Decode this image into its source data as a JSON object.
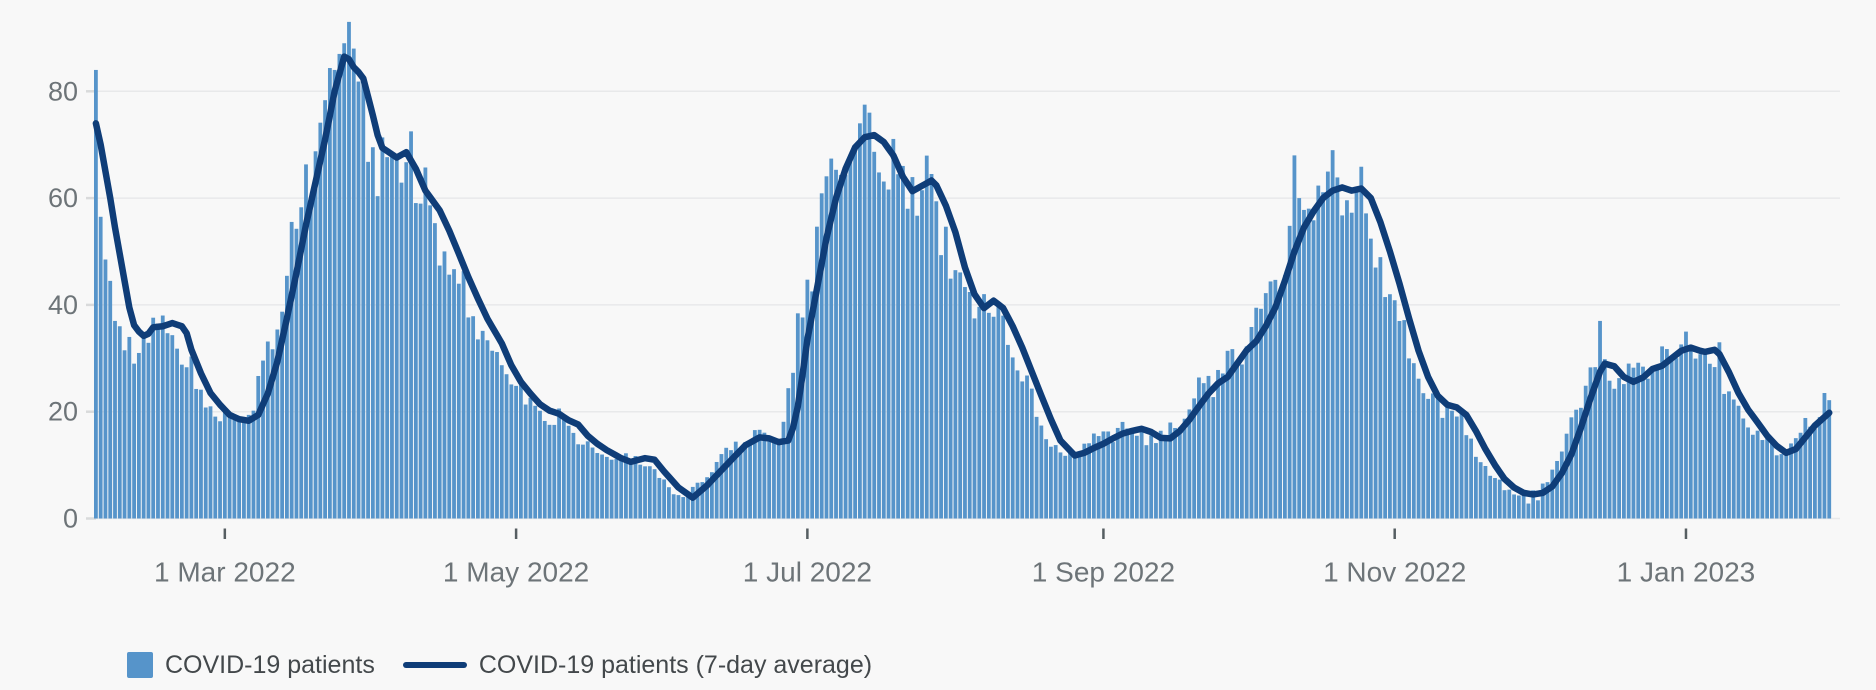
{
  "colors": {
    "bar": "#5694ca",
    "line": "#0f3d78",
    "background": "#f8f8f8",
    "grid": "#e8e9ea",
    "axis_tick_dash": "#d9dadb",
    "x_tick": "#565e62",
    "axis_text": "#6d7478",
    "legend_text": "#43484b"
  },
  "legend": {
    "items": [
      {
        "label": "COVID-19 patients",
        "swatch": "square",
        "color": "#5694ca"
      },
      {
        "label": "COVID-19 patients (7-day average)",
        "swatch": "line",
        "color": "#0f3d78"
      }
    ]
  },
  "chart_data": {
    "type": "bar",
    "title": "",
    "estimated": true,
    "date_range": {
      "start": "2022-02-02",
      "end": "2023-01-31"
    },
    "y_axis": {
      "ticks": [
        0,
        20,
        40,
        60,
        80
      ],
      "ylim": [
        0,
        93.5
      ],
      "grid": true
    },
    "x_axis": {
      "ticks": [
        {
          "label": "1 Mar 2022",
          "date": "2022-03-01"
        },
        {
          "label": "1 May 2022",
          "date": "2022-05-01"
        },
        {
          "label": "1 Jul 2022",
          "date": "2022-07-01"
        },
        {
          "label": "1 Sep 2022",
          "date": "2022-09-01"
        },
        {
          "label": "1 Nov 2022",
          "date": "2022-11-01"
        },
        {
          "label": "1 Jan 2023",
          "date": "2023-01-01"
        }
      ]
    },
    "legend_position": "bottom-left",
    "series": [
      {
        "name": "COVID-19 patients",
        "type": "bar",
        "color": "#5694ca",
        "derivation": "daily value = 7-day-average value led by lead_days, times deterministic noise factor; specific bars overridden",
        "noise": {
          "amp": 0.09,
          "weekly_amp": 0.05,
          "weekly_phase": 2.0,
          "lead_days": 2.2,
          "cap": 93.2
        },
        "overrides": {
          "2022-02-02": 84,
          "2022-02-03": 56.5,
          "2022-02-04": 48.5,
          "2022-02-05": 44.5,
          "2022-02-06": 37,
          "2022-02-07": 36,
          "2022-02-08": 31.5,
          "2022-02-09": 34,
          "2022-02-10": 29,
          "2022-02-11": 31,
          "2022-03-24": 84,
          "2022-03-25": 87,
          "2022-03-26": 89,
          "2022-03-27": 93,
          "2022-03-28": 88,
          "2022-04-09": 72.5,
          "2022-07-12": 74,
          "2022-07-13": 77.5,
          "2022-07-14": 76,
          "2022-10-11": 68,
          "2022-10-12": 60,
          "2022-11-29": 2.8,
          "2022-12-01": 3.4,
          "2022-12-14": 37,
          "2023-01-01": 35,
          "2023-01-08": 33,
          "2023-01-30": 23.5
        }
      },
      {
        "name": "COVID-19 patients (7-day average)",
        "type": "line",
        "color": "#0f3d78",
        "anchors": [
          [
            "2022-02-02",
            74
          ],
          [
            "2022-02-03",
            70
          ],
          [
            "2022-02-04",
            65
          ],
          [
            "2022-02-05",
            60
          ],
          [
            "2022-02-06",
            54.5
          ],
          [
            "2022-02-07",
            49.5
          ],
          [
            "2022-02-08",
            44.5
          ],
          [
            "2022-02-09",
            39.5
          ],
          [
            "2022-02-10",
            36.2
          ],
          [
            "2022-02-11",
            35
          ],
          [
            "2022-02-12",
            34.2
          ],
          [
            "2022-02-13",
            34.6
          ],
          [
            "2022-02-14",
            35.8
          ],
          [
            "2022-02-16",
            36
          ],
          [
            "2022-02-18",
            36.6
          ],
          [
            "2022-02-20",
            36
          ],
          [
            "2022-02-21",
            34.7
          ],
          [
            "2022-02-22",
            31.6
          ],
          [
            "2022-02-24",
            27.2
          ],
          [
            "2022-02-26",
            23.5
          ],
          [
            "2022-02-28",
            21.3
          ],
          [
            "2022-03-02",
            19.4
          ],
          [
            "2022-03-04",
            18.6
          ],
          [
            "2022-03-06",
            18.3
          ],
          [
            "2022-03-08",
            19.4
          ],
          [
            "2022-03-10",
            23.4
          ],
          [
            "2022-03-12",
            29.4
          ],
          [
            "2022-03-14",
            37.5
          ],
          [
            "2022-03-16",
            46
          ],
          [
            "2022-03-18",
            55
          ],
          [
            "2022-03-20",
            63
          ],
          [
            "2022-03-22",
            71
          ],
          [
            "2022-03-24",
            80
          ],
          [
            "2022-03-26",
            86.5
          ],
          [
            "2022-03-27",
            86
          ],
          [
            "2022-03-28",
            84.5
          ],
          [
            "2022-03-29",
            83.6
          ],
          [
            "2022-03-30",
            82.4
          ],
          [
            "2022-03-31",
            79
          ],
          [
            "2022-04-01",
            75.5
          ],
          [
            "2022-04-02",
            71.8
          ],
          [
            "2022-04-03",
            69.4
          ],
          [
            "2022-04-05",
            68.2
          ],
          [
            "2022-04-06",
            67.6
          ],
          [
            "2022-04-08",
            68.6
          ],
          [
            "2022-04-10",
            65.5
          ],
          [
            "2022-04-12",
            61.4
          ],
          [
            "2022-04-15",
            57.7
          ],
          [
            "2022-04-17",
            53.9
          ],
          [
            "2022-04-19",
            49.6
          ],
          [
            "2022-04-21",
            45.2
          ],
          [
            "2022-04-23",
            41.2
          ],
          [
            "2022-04-25",
            37.4
          ],
          [
            "2022-04-28",
            32.8
          ],
          [
            "2022-04-30",
            28.7
          ],
          [
            "2022-05-02",
            25.6
          ],
          [
            "2022-05-04",
            23.4
          ],
          [
            "2022-05-06",
            21.4
          ],
          [
            "2022-05-08",
            20.2
          ],
          [
            "2022-05-10",
            19.6
          ],
          [
            "2022-05-12",
            18.4
          ],
          [
            "2022-05-14",
            17.6
          ],
          [
            "2022-05-16",
            15.5
          ],
          [
            "2022-05-18",
            14
          ],
          [
            "2022-05-20",
            12.8
          ],
          [
            "2022-05-23",
            11.3
          ],
          [
            "2022-05-25",
            10.6
          ],
          [
            "2022-05-28",
            11.3
          ],
          [
            "2022-05-30",
            11
          ],
          [
            "2022-06-01",
            8.8
          ],
          [
            "2022-06-04",
            5.8
          ],
          [
            "2022-06-07",
            3.9
          ],
          [
            "2022-06-10",
            6.2
          ],
          [
            "2022-06-12",
            8.1
          ],
          [
            "2022-06-15",
            10.9
          ],
          [
            "2022-06-18",
            13.7
          ],
          [
            "2022-06-21",
            15.2
          ],
          [
            "2022-06-23",
            15
          ],
          [
            "2022-06-25",
            14.3
          ],
          [
            "2022-06-27",
            14.6
          ],
          [
            "2022-06-28",
            17
          ],
          [
            "2022-06-29",
            21
          ],
          [
            "2022-06-30",
            27
          ],
          [
            "2022-07-01",
            33.5
          ],
          [
            "2022-07-03",
            43
          ],
          [
            "2022-07-05",
            52.5
          ],
          [
            "2022-07-07",
            60
          ],
          [
            "2022-07-09",
            65.5
          ],
          [
            "2022-07-11",
            69.5
          ],
          [
            "2022-07-13",
            71.4
          ],
          [
            "2022-07-15",
            71.8
          ],
          [
            "2022-07-17",
            70.5
          ],
          [
            "2022-07-19",
            68
          ],
          [
            "2022-07-21",
            64
          ],
          [
            "2022-07-23",
            61.3
          ],
          [
            "2022-07-25",
            62.3
          ],
          [
            "2022-07-27",
            63.3
          ],
          [
            "2022-07-28",
            62.4
          ],
          [
            "2022-07-30",
            58.6
          ],
          [
            "2022-08-01",
            53.6
          ],
          [
            "2022-08-03",
            47
          ],
          [
            "2022-08-05",
            42
          ],
          [
            "2022-08-07",
            39.4
          ],
          [
            "2022-08-09",
            40.8
          ],
          [
            "2022-08-11",
            39.4
          ],
          [
            "2022-08-13",
            36
          ],
          [
            "2022-08-15",
            32
          ],
          [
            "2022-08-17",
            27.5
          ],
          [
            "2022-08-19",
            23
          ],
          [
            "2022-08-21",
            18.6
          ],
          [
            "2022-08-23",
            14.6
          ],
          [
            "2022-08-26",
            11.8
          ],
          [
            "2022-08-28",
            12.3
          ],
          [
            "2022-08-30",
            13.2
          ],
          [
            "2022-09-01",
            14
          ],
          [
            "2022-09-03",
            15
          ],
          [
            "2022-09-05",
            15.9
          ],
          [
            "2022-09-07",
            16.4
          ],
          [
            "2022-09-09",
            16.8
          ],
          [
            "2022-09-11",
            16.2
          ],
          [
            "2022-09-13",
            15.1
          ],
          [
            "2022-09-15",
            15
          ],
          [
            "2022-09-17",
            16.4
          ],
          [
            "2022-09-19",
            18.5
          ],
          [
            "2022-09-21",
            21
          ],
          [
            "2022-09-23",
            23.4
          ],
          [
            "2022-09-25",
            25.3
          ],
          [
            "2022-09-27",
            26.5
          ],
          [
            "2022-09-29",
            29
          ],
          [
            "2022-10-01",
            31.5
          ],
          [
            "2022-10-03",
            33.2
          ],
          [
            "2022-10-05",
            36
          ],
          [
            "2022-10-07",
            39.5
          ],
          [
            "2022-10-09",
            44.5
          ],
          [
            "2022-10-11",
            50
          ],
          [
            "2022-10-13",
            54.5
          ],
          [
            "2022-10-15",
            57.5
          ],
          [
            "2022-10-17",
            60
          ],
          [
            "2022-10-19",
            61.4
          ],
          [
            "2022-10-21",
            62
          ],
          [
            "2022-10-23",
            61.4
          ],
          [
            "2022-10-25",
            61.8
          ],
          [
            "2022-10-27",
            60
          ],
          [
            "2022-10-29",
            55.5
          ],
          [
            "2022-10-31",
            50
          ],
          [
            "2022-11-02",
            44
          ],
          [
            "2022-11-04",
            37.5
          ],
          [
            "2022-11-06",
            31.4
          ],
          [
            "2022-11-08",
            26.5
          ],
          [
            "2022-11-10",
            23
          ],
          [
            "2022-11-12",
            21.3
          ],
          [
            "2022-11-14",
            20.8
          ],
          [
            "2022-11-16",
            19.4
          ],
          [
            "2022-11-18",
            16.4
          ],
          [
            "2022-11-20",
            13
          ],
          [
            "2022-11-22",
            10
          ],
          [
            "2022-11-24",
            7.4
          ],
          [
            "2022-11-26",
            5.8
          ],
          [
            "2022-11-28",
            4.8
          ],
          [
            "2022-11-30",
            4.5
          ],
          [
            "2022-12-02",
            4.8
          ],
          [
            "2022-12-04",
            6
          ],
          [
            "2022-12-06",
            8.5
          ],
          [
            "2022-12-08",
            12
          ],
          [
            "2022-12-10",
            17
          ],
          [
            "2022-12-12",
            22.5
          ],
          [
            "2022-12-14",
            27.5
          ],
          [
            "2022-12-15",
            29
          ],
          [
            "2022-12-17",
            28.5
          ],
          [
            "2022-12-19",
            26.5
          ],
          [
            "2022-12-21",
            25.6
          ],
          [
            "2022-12-23",
            26.4
          ],
          [
            "2022-12-25",
            28
          ],
          [
            "2022-12-27",
            28.6
          ],
          [
            "2022-12-29",
            30
          ],
          [
            "2022-12-31",
            31.4
          ],
          [
            "2023-01-02",
            32
          ],
          [
            "2023-01-04",
            31.4
          ],
          [
            "2023-01-05",
            31.2
          ],
          [
            "2023-01-07",
            31.6
          ],
          [
            "2023-01-08",
            30.8
          ],
          [
            "2023-01-10",
            27.4
          ],
          [
            "2023-01-12",
            23.5
          ],
          [
            "2023-01-14",
            20.4
          ],
          [
            "2023-01-16",
            18
          ],
          [
            "2023-01-18",
            15.5
          ],
          [
            "2023-01-20",
            13.6
          ],
          [
            "2023-01-22",
            12.3
          ],
          [
            "2023-01-24",
            13
          ],
          [
            "2023-01-26",
            15.2
          ],
          [
            "2023-01-28",
            17.4
          ],
          [
            "2023-01-30",
            19
          ],
          [
            "2023-01-31",
            19.8
          ]
        ]
      }
    ]
  }
}
